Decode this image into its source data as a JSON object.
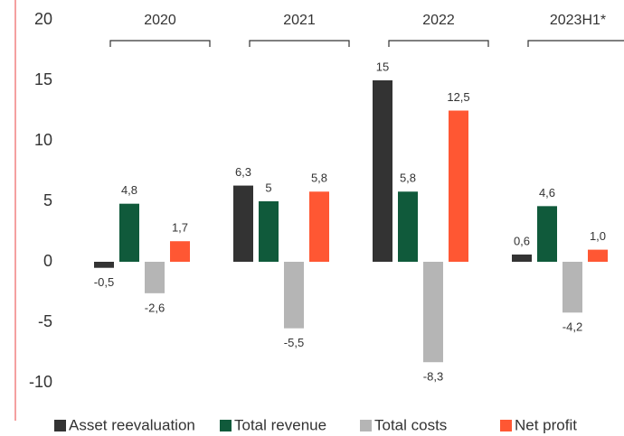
{
  "chart_data": {
    "type": "bar",
    "categories": [
      "2020",
      "2021",
      "2022",
      "2023H1*"
    ],
    "series": [
      {
        "name": "Asset reevaluation",
        "color": "#333333",
        "values": [
          -0.5,
          6.3,
          15,
          0.6
        ],
        "value_labels": [
          "-0,5",
          "6,3",
          "15",
          "0,6"
        ]
      },
      {
        "name": "Total revenue",
        "color": "#105a3b",
        "values": [
          4.8,
          5,
          5.8,
          4.6
        ],
        "value_labels": [
          "4,8",
          "5",
          "5,8",
          "4,6"
        ]
      },
      {
        "name": "Total costs",
        "color": "#b5b5b5",
        "values": [
          -2.6,
          -5.5,
          -8.3,
          -4.2
        ],
        "value_labels": [
          "-2,6",
          "-5,5",
          "-8,3",
          "-4,2"
        ]
      },
      {
        "name": "Net profit",
        "color": "#ff5733",
        "values": [
          1.7,
          5.8,
          12.5,
          1.0
        ],
        "value_labels": [
          "1,7",
          "5,8",
          "12,5",
          "1,0"
        ]
      }
    ],
    "ylim": [
      -10,
      20
    ],
    "yticks": [
      20,
      15,
      10,
      5,
      0,
      -5,
      -10
    ],
    "legend": "bottom"
  }
}
